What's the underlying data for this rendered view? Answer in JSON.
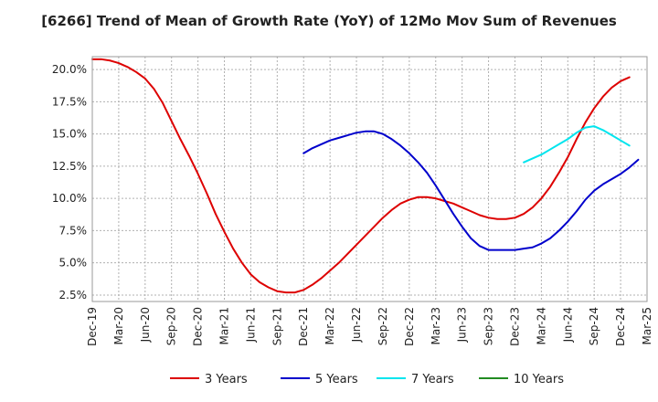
{
  "chart_data": {
    "type": "line",
    "title": "[6266]  Trend of Mean of Growth Rate (YoY) of 12Mo Mov Sum of Revenues",
    "xlabel": "",
    "ylabel": "",
    "x_ticks": [
      "Dec-19",
      "Mar-20",
      "Jun-20",
      "Sep-20",
      "Dec-20",
      "Mar-21",
      "Jun-21",
      "Sep-21",
      "Dec-21",
      "Mar-22",
      "Jun-22",
      "Sep-22",
      "Dec-22",
      "Mar-23",
      "Jun-23",
      "Sep-23",
      "Dec-23",
      "Mar-24",
      "Jun-24",
      "Sep-24",
      "Dec-24",
      "Mar-25"
    ],
    "y_ticks": [
      "2.5%",
      "5.0%",
      "7.5%",
      "10.0%",
      "12.5%",
      "15.0%",
      "17.5%",
      "20.0%"
    ],
    "y_tick_values": [
      2.5,
      5.0,
      7.5,
      10.0,
      12.5,
      15.0,
      17.5,
      20.0
    ],
    "ylim": [
      2.0,
      21.0
    ],
    "x_range": [
      0,
      63
    ],
    "grid": true,
    "legend_position": "bottom",
    "series": [
      {
        "name": "3 Years",
        "color": "#dd0000",
        "start_index": 0,
        "values": [
          20.8,
          20.8,
          20.7,
          20.5,
          20.2,
          19.8,
          19.3,
          18.5,
          17.4,
          16.0,
          14.6,
          13.3,
          11.9,
          10.4,
          8.8,
          7.4,
          6.1,
          5.0,
          4.1,
          3.5,
          3.1,
          2.8,
          2.7,
          2.7,
          2.9,
          3.3,
          3.8,
          4.4,
          5.0,
          5.7,
          6.4,
          7.1,
          7.8,
          8.5,
          9.1,
          9.6,
          9.9,
          10.1,
          10.1,
          10.0,
          9.8,
          9.6,
          9.3,
          9.0,
          8.7,
          8.5,
          8.4,
          8.4,
          8.5,
          8.8,
          9.3,
          10.0,
          10.9,
          12.0,
          13.2,
          14.6,
          15.9,
          17.0,
          17.9,
          18.6,
          19.1,
          19.4
        ]
      },
      {
        "name": "5 Years",
        "color": "#0000cc",
        "start_index": 24,
        "values": [
          13.5,
          13.9,
          14.2,
          14.5,
          14.7,
          14.9,
          15.1,
          15.2,
          15.2,
          15.0,
          14.6,
          14.1,
          13.5,
          12.8,
          12.0,
          11.0,
          9.9,
          8.8,
          7.8,
          6.9,
          6.3,
          6.0,
          6.0,
          6.0,
          6.0,
          6.1,
          6.2,
          6.5,
          6.9,
          7.5,
          8.2,
          9.0,
          9.9,
          10.6,
          11.1,
          11.5,
          11.9,
          12.4,
          13.0
        ]
      },
      {
        "name": "7 Years",
        "color": "#00e5ee",
        "start_index": 49,
        "values": [
          12.8,
          13.1,
          13.4,
          13.8,
          14.2,
          14.6,
          15.1,
          15.5,
          15.6,
          15.3,
          14.9,
          14.5,
          14.1
        ]
      },
      {
        "name": "10 Years",
        "color": "#228b22",
        "start_index": 0,
        "values": []
      }
    ]
  }
}
